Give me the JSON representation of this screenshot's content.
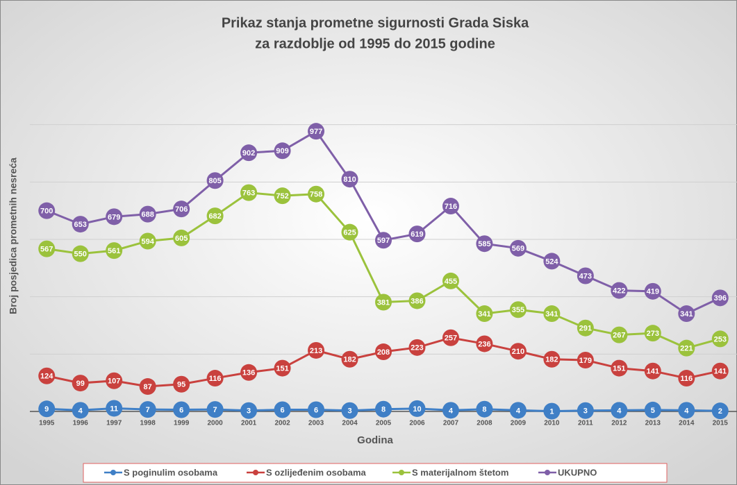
{
  "chart_data": {
    "type": "line",
    "title": [
      "Prikaz stanja prometne sigurnosti Grada Siska",
      "za razdoblje od 1995 do 2015 godine"
    ],
    "x_label": "Godina",
    "y_label": "Broj posjedica prometnih nesreća",
    "categories": [
      "1995",
      "1996",
      "1997",
      "1998",
      "1999",
      "2000",
      "2001",
      "2002",
      "2003",
      "2004",
      "2005",
      "2006",
      "2007",
      "2008",
      "2009",
      "2010",
      "2011",
      "2012",
      "2013",
      "2014",
      "2015"
    ],
    "series": [
      {
        "name": "S poginulim osobama",
        "color": "#3f7fc6",
        "values": [
          9,
          4,
          11,
          7,
          6,
          7,
          3,
          6,
          6,
          3,
          8,
          10,
          4,
          8,
          4,
          1,
          3,
          4,
          5,
          4,
          2
        ]
      },
      {
        "name": "S ozlijeđenim osobama",
        "color": "#c9413e",
        "values": [
          124,
          99,
          107,
          87,
          95,
          116,
          136,
          151,
          213,
          182,
          208,
          223,
          257,
          236,
          210,
          182,
          179,
          151,
          141,
          116,
          141
        ]
      },
      {
        "name": "S materijalnom štetom",
        "color": "#9bc23c",
        "values": [
          567,
          550,
          561,
          594,
          605,
          682,
          763,
          752,
          758,
          625,
          381,
          386,
          455,
          341,
          355,
          341,
          291,
          267,
          273,
          221,
          253
        ]
      },
      {
        "name": "UKUPNO",
        "color": "#7f5fa8",
        "values": [
          700,
          653,
          679,
          688,
          706,
          805,
          902,
          909,
          977,
          810,
          597,
          619,
          716,
          585,
          569,
          524,
          473,
          422,
          419,
          341,
          396
        ]
      }
    ],
    "ylim": [
      0,
      1200
    ],
    "yticks": [
      0,
      200,
      400,
      600,
      800,
      1000
    ],
    "grid": true,
    "legend": "bottom"
  }
}
